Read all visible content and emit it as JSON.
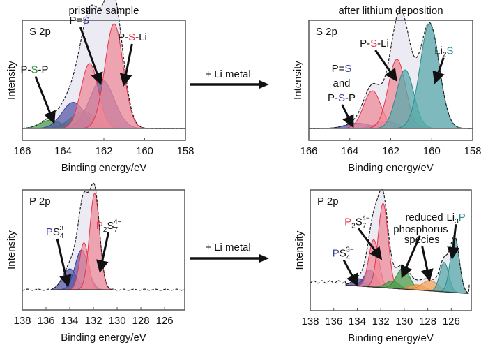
{
  "colors": {
    "envelope_fill": "#ecebf4",
    "red": "#e8334a",
    "red_fill": "#ef8b99",
    "blue": "#3b3fa0",
    "blue_fill": "#5a5aa8",
    "green": "#2e8b3a",
    "green_fill": "#4f9d4f",
    "teal": "#2a8c8a",
    "teal_fill": "#5aa9ab",
    "orange": "#e8822a",
    "orange_fill": "#f3a45c",
    "frame": "#555555",
    "text": "#111111"
  },
  "arrows": [
    {
      "label": "+ Li metal"
    },
    {
      "label": "+ Li metal"
    }
  ],
  "chart_data": [
    {
      "type": "area",
      "title": "pristine sample",
      "panel_label": "S 2p",
      "xlabel": "Binding energy/eV",
      "ylabel": "Intensity",
      "xlim": [
        166,
        158
      ],
      "xticks": [
        166,
        164,
        162,
        160,
        158
      ],
      "baseline": 0.02,
      "envelope_range": [
        166,
        158
      ],
      "components": [
        {
          "name": "P-S-P (2p3/2)",
          "color": "green",
          "center": 164.6,
          "amp": 0.08,
          "fwhm": 1.2
        },
        {
          "name": "P-S-P (2p1/2)",
          "color": "green",
          "center": 163.0,
          "amp": 0.16,
          "fwhm": 1.5
        },
        {
          "name": "P=S (2p1/2)",
          "color": "blue",
          "center": 163.5,
          "amp": 0.25,
          "fwhm": 1.3
        },
        {
          "name": "P=S (2p3/2)",
          "color": "blue",
          "center": 162.1,
          "amp": 0.47,
          "fwhm": 1.4
        },
        {
          "name": "P-S-Li (2p1/2)",
          "color": "red",
          "center": 162.7,
          "amp": 0.62,
          "fwhm": 1.0
        },
        {
          "name": "P-S-Li (2p3/2)",
          "color": "red",
          "center": 161.5,
          "amp": 1.0,
          "fwhm": 1.05
        }
      ],
      "annotations": [
        {
          "parts": [
            {
              "t": "P-",
              "c": "text"
            },
            {
              "t": "S",
              "c": "green"
            },
            {
              "t": "-P",
              "c": "text"
            }
          ],
          "at": [
            165.4,
            0.55
          ],
          "arrow_to": [
            164.5,
            0.1
          ]
        },
        {
          "parts": [
            {
              "t": "P=",
              "c": "text"
            },
            {
              "t": "S",
              "c": "blue"
            }
          ],
          "at": [
            163.2,
            1.02
          ],
          "arrow_to": [
            162.2,
            0.47
          ]
        },
        {
          "parts": [
            {
              "t": "P-",
              "c": "text"
            },
            {
              "t": "S",
              "c": "red"
            },
            {
              "t": "-Li",
              "c": "text"
            }
          ],
          "at": [
            160.6,
            0.86
          ],
          "arrow_to": [
            161.0,
            0.46
          ]
        }
      ]
    },
    {
      "type": "area",
      "title": "after lithium deposition",
      "panel_label": "S 2p",
      "xlabel": "Binding energy/eV",
      "ylabel": "Intensity",
      "xlim": [
        166,
        158
      ],
      "xticks": [
        166,
        164,
        162,
        160,
        158
      ],
      "baseline": 0.02,
      "envelope_range": [
        166,
        158
      ],
      "components": [
        {
          "name": "P=S / P-S-P (2p1/2)",
          "color": "blue",
          "center": 163.6,
          "amp": 0.05,
          "fwhm": 1.4
        },
        {
          "name": "P=S / P-S-P (2p3/2)",
          "color": "blue",
          "center": 162.2,
          "amp": 0.07,
          "fwhm": 1.2
        },
        {
          "name": "P-S-Li (2p1/2)",
          "color": "red",
          "center": 162.9,
          "amp": 0.36,
          "fwhm": 1.0
        },
        {
          "name": "P-S-Li (2p3/2)",
          "color": "red",
          "center": 161.7,
          "amp": 0.66,
          "fwhm": 1.0
        },
        {
          "name": "Li2S (2p1/2)",
          "color": "teal",
          "center": 161.3,
          "amp": 0.56,
          "fwhm": 1.0
        },
        {
          "name": "Li2S (2p3/2)",
          "color": "teal",
          "center": 160.1,
          "amp": 1.0,
          "fwhm": 1.1
        }
      ],
      "annotations": [
        {
          "parts": [
            {
              "t": "P-",
              "c": "text"
            },
            {
              "t": "S",
              "c": "red"
            },
            {
              "t": "-Li",
              "c": "text"
            }
          ],
          "at": [
            162.8,
            0.8
          ],
          "arrow_to": [
            161.8,
            0.5
          ]
        },
        {
          "parts": [
            {
              "t": "Li",
              "c": "text"
            },
            {
              "t": "2",
              "c": "text",
              "sub": true
            },
            {
              "t": "S",
              "c": "teal"
            }
          ],
          "at": [
            159.4,
            0.73
          ],
          "arrow_to": [
            159.8,
            0.48
          ]
        },
        {
          "parts": [
            {
              "t": "P=",
              "c": "text"
            },
            {
              "t": "S",
              "c": "blue"
            }
          ],
          "at": [
            164.4,
            0.56
          ],
          "arrow_to": null
        },
        {
          "parts": [
            {
              "t": "and",
              "c": "text"
            }
          ],
          "at": [
            164.4,
            0.42
          ],
          "arrow_to": null
        },
        {
          "parts": [
            {
              "t": "P-",
              "c": "text"
            },
            {
              "t": "S",
              "c": "blue"
            },
            {
              "t": "-P",
              "c": "text"
            }
          ],
          "at": [
            164.4,
            0.28
          ],
          "arrow_to": [
            163.9,
            0.06
          ]
        }
      ]
    },
    {
      "type": "area",
      "title": "",
      "panel_label": "P 2p",
      "xlabel": "Binding energy/eV",
      "ylabel": "Intensity",
      "xlim": [
        138,
        124.3
      ],
      "xticks": [
        138,
        136,
        134,
        132,
        130,
        128,
        126
      ],
      "baseline": 0.1,
      "envelope_range": [
        135.5,
        130.5
      ],
      "components": [
        {
          "name": "PS4 3- (2p1/2)",
          "color": "blue",
          "center": 134.0,
          "amp": 0.2,
          "fwhm": 1.4
        },
        {
          "name": "PS4 3- (2p3/2)",
          "color": "blue",
          "center": 133.0,
          "amp": 0.38,
          "fwhm": 1.3
        },
        {
          "name": "P2S7 4- (2p1/2)",
          "color": "red",
          "center": 132.8,
          "amp": 0.45,
          "fwhm": 0.9
        },
        {
          "name": "P2S7 4- (2p3/2)",
          "color": "red",
          "center": 131.9,
          "amp": 0.92,
          "fwhm": 1.0
        }
      ],
      "annotations": [
        {
          "parts": [
            {
              "t": "P",
              "c": "blue"
            },
            {
              "t": "S",
              "c": "text"
            },
            {
              "t": "4",
              "c": "text",
              "sub": true
            },
            {
              "t": "3−",
              "c": "text",
              "sup": true
            }
          ],
          "at": [
            135.1,
            0.62
          ],
          "arrow_to": [
            134.2,
            0.16
          ]
        },
        {
          "parts": [
            {
              "t": "P",
              "c": "red"
            },
            {
              "t": "2",
              "c": "text",
              "sub": true
            },
            {
              "t": "S",
              "c": "text"
            },
            {
              "t": "7",
              "c": "text",
              "sub": true
            },
            {
              "t": "4−",
              "c": "text",
              "sup": true
            }
          ],
          "at": [
            130.7,
            0.68
          ],
          "arrow_to": [
            131.4,
            0.3
          ]
        }
      ]
    },
    {
      "type": "area",
      "title": "",
      "panel_label": "P 2p",
      "xlabel": "Binding energy/eV",
      "ylabel": "Intensity",
      "xlim": [
        138,
        124.3
      ],
      "xticks": [
        138,
        136,
        134,
        132,
        130,
        128,
        126
      ],
      "baseline": 0.15,
      "envelope_range": [
        135.0,
        124.5
      ],
      "components": [
        {
          "name": "PS4 3- (2p1/2)",
          "color": "blue",
          "center": 133.9,
          "amp": 0.07,
          "fwhm": 1.2
        },
        {
          "name": "PS4 3- (2p3/2)",
          "color": "blue",
          "center": 132.9,
          "amp": 0.16,
          "fwhm": 1.2
        },
        {
          "name": "P2S7 4- (2p1/2)",
          "color": "red",
          "center": 132.6,
          "amp": 0.45,
          "fwhm": 1.0
        },
        {
          "name": "P2S7 4- (2p3/2)",
          "color": "red",
          "center": 131.8,
          "amp": 0.8,
          "fwhm": 1.0
        },
        {
          "name": "reduced P (1)",
          "color": "green",
          "center": 131.0,
          "amp": 0.07,
          "fwhm": 1.3
        },
        {
          "name": "reduced P (2)",
          "color": "green",
          "center": 130.1,
          "amp": 0.2,
          "fwhm": 1.3
        },
        {
          "name": "reduced P (3)",
          "color": "orange",
          "center": 128.9,
          "amp": 0.05,
          "fwhm": 1.5
        },
        {
          "name": "reduced P (4)",
          "color": "orange",
          "center": 127.8,
          "amp": 0.1,
          "fwhm": 1.6
        },
        {
          "name": "Li3P (2p1/2)",
          "color": "teal",
          "center": 126.6,
          "amp": 0.28,
          "fwhm": 0.9
        },
        {
          "name": "Li3P (2p3/2)",
          "color": "teal",
          "center": 125.7,
          "amp": 0.52,
          "fwhm": 0.9
        }
      ],
      "pre_edge_noise": true,
      "annotations": [
        {
          "parts": [
            {
              "t": "P",
              "c": "blue"
            },
            {
              "t": "S",
              "c": "text"
            },
            {
              "t": "4",
              "c": "text",
              "sub": true
            },
            {
              "t": "3−",
              "c": "text",
              "sup": true
            }
          ],
          "at": [
            135.2,
            0.42
          ],
          "arrow_to": [
            134.1,
            0.17
          ]
        },
        {
          "parts": [
            {
              "t": "P",
              "c": "red"
            },
            {
              "t": "2",
              "c": "text",
              "sub": true
            },
            {
              "t": "S",
              "c": "text"
            },
            {
              "t": "7",
              "c": "text",
              "sub": true
            },
            {
              "t": "4−",
              "c": "text",
              "sup": true
            }
          ],
          "at": [
            134.0,
            0.72
          ],
          "arrow_to": [
            132.1,
            0.42
          ]
        },
        {
          "parts": [
            {
              "t": "reduced",
              "c": "text"
            }
          ],
          "at": [
            128.3,
            0.76
          ],
          "arrow_to": null
        },
        {
          "parts": [
            {
              "t": "phosphorus",
              "c": "text"
            }
          ],
          "at": [
            128.6,
            0.65
          ],
          "arrow_to": [
            130.1,
            0.25
          ]
        },
        {
          "parts": [
            {
              "t": "species",
              "c": "text"
            }
          ],
          "at": [
            128.5,
            0.55
          ],
          "arrow_to": [
            127.9,
            0.22
          ]
        },
        {
          "parts": [
            {
              "t": "Li",
              "c": "text"
            },
            {
              "t": "3",
              "c": "text",
              "sub": true
            },
            {
              "t": "P",
              "c": "teal"
            }
          ],
          "at": [
            125.6,
            0.76
          ],
          "arrow_to": [
            125.9,
            0.43
          ]
        }
      ]
    }
  ]
}
